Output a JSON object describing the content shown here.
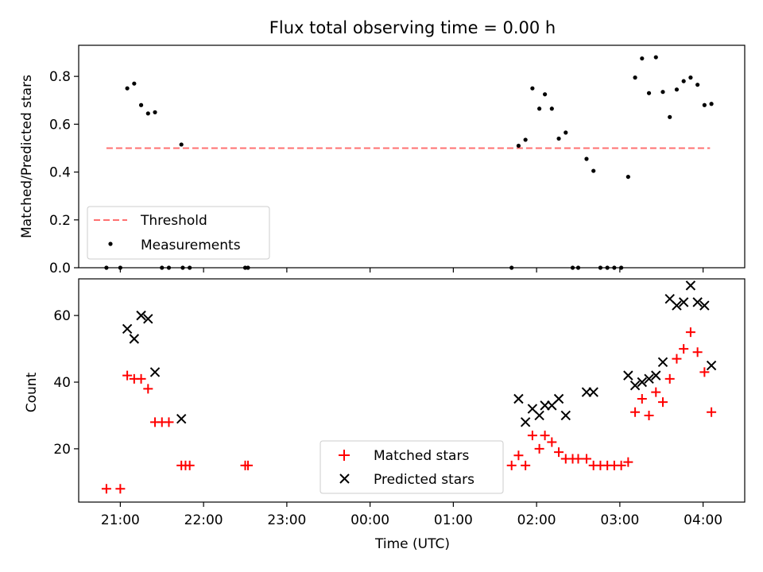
{
  "title": "Flux total observing time = 0.00 h",
  "colors": {
    "threshold": "#ff7070",
    "measurement": "#000000",
    "matched": "#ff0000",
    "predicted": "#000000"
  },
  "chart_data": [
    {
      "type": "scatter",
      "ylabel": "Matched/Predicted stars",
      "xlim": [
        "20:30",
        "04:30"
      ],
      "ylim": [
        0,
        0.93
      ],
      "yticks": [
        "0.0",
        "0.2",
        "0.4",
        "0.6",
        "0.8"
      ],
      "grid": false,
      "legend_position": "lower-left",
      "threshold": {
        "name": "Threshold",
        "value": 0.5,
        "x_range": [
          "20:50",
          "04:05"
        ]
      },
      "series": [
        {
          "name": "Measurements",
          "points": [
            [
              "20:50",
              0.0
            ],
            [
              "21:00",
              0.0
            ],
            [
              "21:05",
              0.75
            ],
            [
              "21:10",
              0.77
            ],
            [
              "21:15",
              0.68
            ],
            [
              "21:20",
              0.645
            ],
            [
              "21:25",
              0.65
            ],
            [
              "21:30",
              0.0
            ],
            [
              "21:35",
              0.0
            ],
            [
              "21:44",
              0.515
            ],
            [
              "21:45",
              0.0
            ],
            [
              "21:50",
              0.0
            ],
            [
              "22:30",
              0.0
            ],
            [
              "22:32",
              0.0
            ],
            [
              "01:42",
              0.0
            ],
            [
              "01:47",
              0.51
            ],
            [
              "01:52",
              0.535
            ],
            [
              "01:57",
              0.75
            ],
            [
              "02:02",
              0.665
            ],
            [
              "02:06",
              0.725
            ],
            [
              "02:11",
              0.665
            ],
            [
              "02:16",
              0.54
            ],
            [
              "02:21",
              0.565
            ],
            [
              "02:26",
              0.0
            ],
            [
              "02:30",
              0.0
            ],
            [
              "02:36",
              0.455
            ],
            [
              "02:41",
              0.405
            ],
            [
              "02:46",
              0.0
            ],
            [
              "02:51",
              0.0
            ],
            [
              "02:56",
              0.0
            ],
            [
              "03:01",
              0.0
            ],
            [
              "03:06",
              0.38
            ],
            [
              "03:11",
              0.795
            ],
            [
              "03:16",
              0.875
            ],
            [
              "03:21",
              0.73
            ],
            [
              "03:26",
              0.88
            ],
            [
              "03:31",
              0.735
            ],
            [
              "03:36",
              0.63
            ],
            [
              "03:41",
              0.745
            ],
            [
              "03:46",
              0.78
            ],
            [
              "03:51",
              0.795
            ],
            [
              "03:56",
              0.765
            ],
            [
              "04:01",
              0.68
            ],
            [
              "04:06",
              0.685
            ]
          ]
        }
      ]
    },
    {
      "type": "scatter",
      "xlabel": "Time (UTC)",
      "ylabel": "Count",
      "xlim": [
        "20:30",
        "04:30"
      ],
      "ylim": [
        4,
        71
      ],
      "xticks": [
        "21:00",
        "22:00",
        "23:00",
        "00:00",
        "01:00",
        "02:00",
        "03:00",
        "04:00"
      ],
      "yticks": [
        "20",
        "40",
        "60"
      ],
      "grid": false,
      "legend_position": "lower-center",
      "series": [
        {
          "name": "Matched stars",
          "points": [
            [
              "20:50",
              8
            ],
            [
              "21:00",
              8
            ],
            [
              "21:05",
              42
            ],
            [
              "21:10",
              41
            ],
            [
              "21:15",
              41
            ],
            [
              "21:20",
              38
            ],
            [
              "21:25",
              28
            ],
            [
              "21:30",
              28
            ],
            [
              "21:35",
              28
            ],
            [
              "21:44",
              15
            ],
            [
              "21:47",
              15
            ],
            [
              "21:50",
              15
            ],
            [
              "22:30",
              15
            ],
            [
              "22:32",
              15
            ],
            [
              "01:42",
              15
            ],
            [
              "01:47",
              18
            ],
            [
              "01:52",
              15
            ],
            [
              "01:57",
              24
            ],
            [
              "02:02",
              20
            ],
            [
              "02:06",
              24
            ],
            [
              "02:11",
              22
            ],
            [
              "02:16",
              19
            ],
            [
              "02:21",
              17
            ],
            [
              "02:26",
              17
            ],
            [
              "02:30",
              17
            ],
            [
              "02:36",
              17
            ],
            [
              "02:41",
              15
            ],
            [
              "02:46",
              15
            ],
            [
              "02:51",
              15
            ],
            [
              "02:56",
              15
            ],
            [
              "03:01",
              15
            ],
            [
              "03:06",
              16
            ],
            [
              "03:11",
              31
            ],
            [
              "03:16",
              35
            ],
            [
              "03:21",
              30
            ],
            [
              "03:26",
              37
            ],
            [
              "03:31",
              34
            ],
            [
              "03:36",
              41
            ],
            [
              "03:41",
              47
            ],
            [
              "03:46",
              50
            ],
            [
              "03:51",
              55
            ],
            [
              "03:56",
              49
            ],
            [
              "04:01",
              43
            ],
            [
              "04:06",
              31
            ]
          ]
        },
        {
          "name": "Predicted stars",
          "points": [
            [
              "21:05",
              56
            ],
            [
              "21:10",
              53
            ],
            [
              "21:15",
              60
            ],
            [
              "21:20",
              59
            ],
            [
              "21:25",
              43
            ],
            [
              "21:44",
              29
            ],
            [
              "01:47",
              35
            ],
            [
              "01:52",
              28
            ],
            [
              "01:57",
              32
            ],
            [
              "02:02",
              30
            ],
            [
              "02:06",
              33
            ],
            [
              "02:11",
              33
            ],
            [
              "02:16",
              35
            ],
            [
              "02:21",
              30
            ],
            [
              "02:36",
              37
            ],
            [
              "02:41",
              37
            ],
            [
              "03:06",
              42
            ],
            [
              "03:11",
              39
            ],
            [
              "03:16",
              40
            ],
            [
              "03:21",
              41
            ],
            [
              "03:26",
              42
            ],
            [
              "03:31",
              46
            ],
            [
              "03:36",
              65
            ],
            [
              "03:41",
              63
            ],
            [
              "03:46",
              64
            ],
            [
              "03:51",
              69
            ],
            [
              "03:56",
              64
            ],
            [
              "04:01",
              63
            ],
            [
              "04:06",
              45
            ]
          ]
        }
      ]
    }
  ]
}
